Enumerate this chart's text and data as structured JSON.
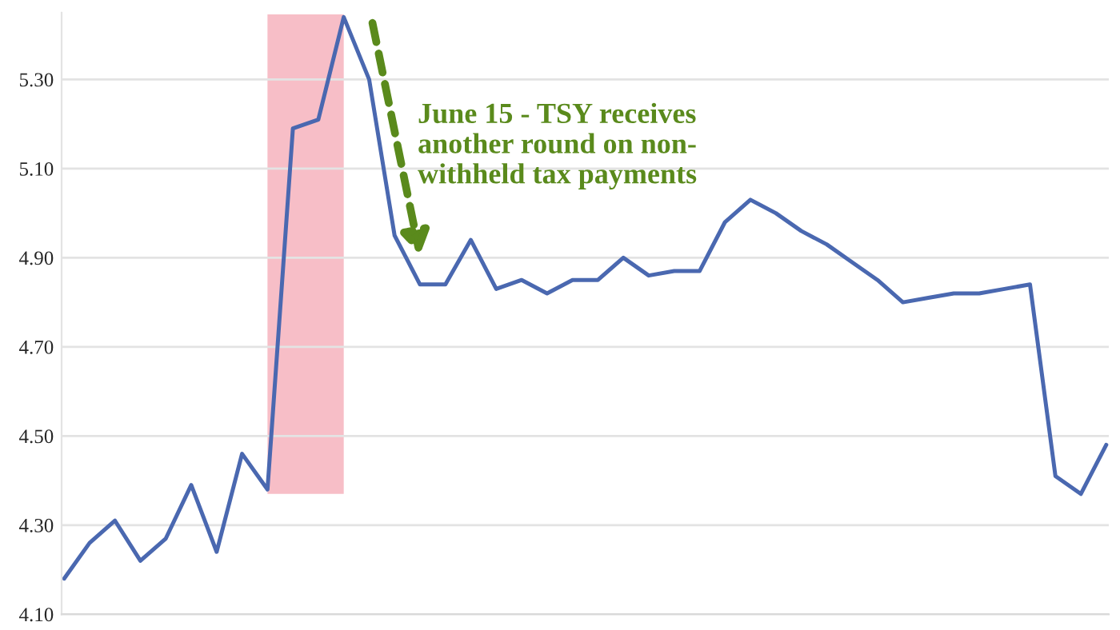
{
  "chart_data": {
    "type": "line",
    "categories": [
      null,
      null,
      null,
      null,
      null,
      null,
      null,
      null,
      null,
      null,
      null,
      null,
      null,
      null,
      null,
      null,
      null,
      null,
      null,
      null,
      null,
      null,
      null,
      null,
      null,
      null,
      null,
      null,
      null,
      null,
      null,
      null,
      null,
      null,
      null,
      null,
      null,
      null,
      null,
      null,
      null,
      null
    ],
    "series": [
      {
        "color": "#4a68b0",
        "values": [
          4.18,
          4.26,
          4.31,
          4.22,
          4.27,
          4.39,
          4.24,
          4.46,
          4.38,
          5.19,
          5.21,
          5.44,
          5.3,
          4.95,
          4.84,
          4.84,
          4.94,
          4.83,
          4.85,
          4.82,
          4.85,
          4.85,
          4.9,
          4.86,
          4.87,
          4.87,
          4.98,
          5.03,
          5.0,
          4.96,
          4.93,
          4.89,
          4.85,
          4.8,
          4.81,
          4.82,
          4.82,
          4.83,
          4.84,
          4.41,
          4.37,
          4.48
        ]
      }
    ],
    "ylim": [
      4.1,
      5.45
    ],
    "yticks": [
      {
        "value": 4.1,
        "label": "4.10"
      },
      {
        "value": 4.3,
        "label": "4.30"
      },
      {
        "value": 4.5,
        "label": "4.50"
      },
      {
        "value": 4.7,
        "label": "4.70"
      },
      {
        "value": 4.9,
        "label": "4.90"
      },
      {
        "value": 5.1,
        "label": "5.10"
      },
      {
        "value": 5.3,
        "label": "5.30"
      }
    ],
    "annotations": [
      "June 15 - TSY receives\nanother round on non-\nwithheld tax payments"
    ],
    "grid": "y",
    "tick_labels": "y",
    "line_style": "solid",
    "marker": "none"
  }
}
